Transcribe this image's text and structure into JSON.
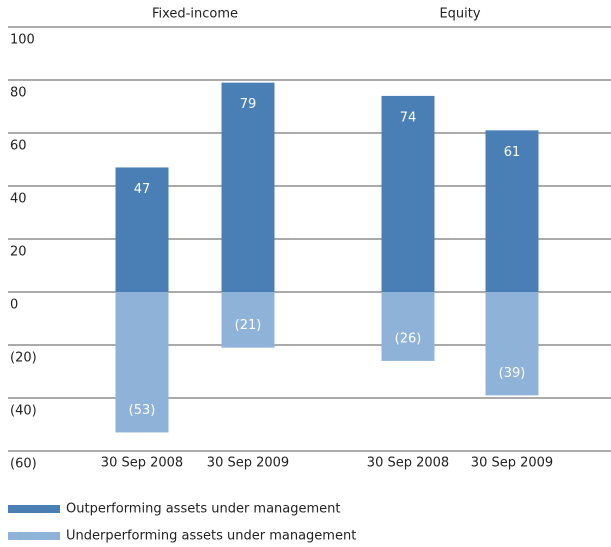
{
  "chart_data": {
    "type": "bar",
    "groups": [
      "Fixed-income",
      "Equity"
    ],
    "categories": [
      "30 Sep 2008",
      "30 Sep 2009",
      "30 Sep 2008",
      "30 Sep 2009"
    ],
    "series": [
      {
        "name": "Outperforming assets under management",
        "color": "#4a7fb5",
        "values": [
          47,
          79,
          74,
          61
        ]
      },
      {
        "name": "Underperforming assets under management",
        "color": "#8fb2d8",
        "values": [
          -53,
          -21,
          -26,
          -39
        ],
        "value_labels": [
          "(53)",
          "(21)",
          "(26)",
          "(39)"
        ]
      }
    ],
    "ylim": [
      -60,
      100
    ],
    "yticks": [
      {
        "value": -60,
        "label": "(60)"
      },
      {
        "value": -40,
        "label": "(40)"
      },
      {
        "value": -20,
        "label": "(20)"
      },
      0,
      20,
      40,
      60,
      80,
      100
    ],
    "grid": true,
    "legend": "bottom"
  }
}
